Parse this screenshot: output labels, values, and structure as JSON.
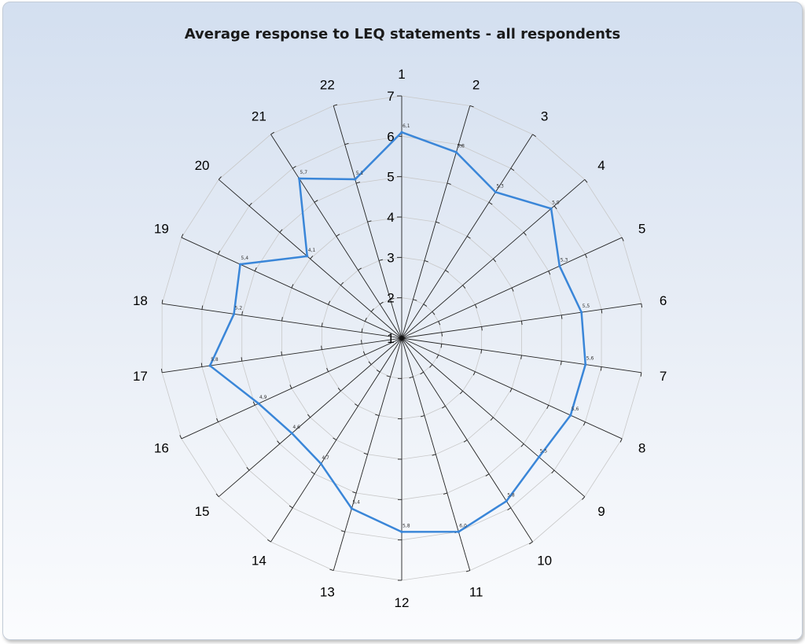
{
  "chart_data": {
    "type": "radar",
    "title": "Average response to LEQ statements - all respondents",
    "categories": [
      "1",
      "2",
      "3",
      "4",
      "5",
      "6",
      "7",
      "8",
      "9",
      "10",
      "11",
      "12",
      "13",
      "14",
      "15",
      "16",
      "17",
      "18",
      "19",
      "20",
      "21",
      "22"
    ],
    "series": [
      {
        "values": [
          6.1,
          5.8,
          5.3,
          5.9,
          5.3,
          5.5,
          5.6,
          5.6,
          5.5,
          5.8,
          6.0,
          5.8,
          5.4,
          4.7,
          4.6,
          4.9,
          5.8,
          5.2,
          5.4,
          4.1,
          5.7,
          5.1
        ],
        "labels": [
          "6,1",
          "5,8",
          "5,3",
          "5,9",
          "5,3",
          "5,5",
          "5,6",
          "5,6",
          "5,5",
          "5,8",
          "6,0",
          "5,8",
          "5,4",
          "4,7",
          "4,6",
          "4,9",
          "5,8",
          "5,2",
          "5,4",
          "4,1",
          "5,7",
          "5,1"
        ],
        "color": "#3a86d8"
      }
    ],
    "rlim": [
      1,
      7
    ],
    "ticks": [
      "1",
      "2",
      "3",
      "4",
      "5",
      "6",
      "7"
    ],
    "grid": true,
    "legend": "none"
  }
}
